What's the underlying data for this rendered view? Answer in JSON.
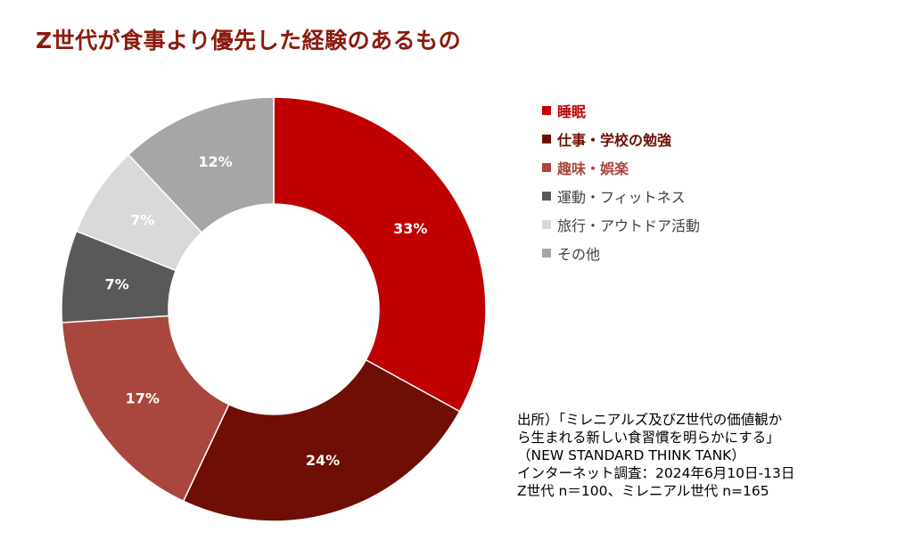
{
  "title": "Z世代が食事より優先した経験のあるもの",
  "colors": {
    "title": "#8b1a0e"
  },
  "chart_data": {
    "type": "pie",
    "donut": true,
    "slices": [
      {
        "label": "睡眠",
        "value": 33,
        "value_label": "33%",
        "color": "#c00000",
        "legend_color": "#c00000",
        "legend_bold": true
      },
      {
        "label": "仕事・学校の勉強",
        "value": 24,
        "value_label": "24%",
        "color": "#6e0e04",
        "legend_color": "#6e0e04",
        "legend_bold": true
      },
      {
        "label": "趣味・娯楽",
        "value": 17,
        "value_label": "17%",
        "color": "#a9473f",
        "legend_color": "#a9473f",
        "legend_bold": true
      },
      {
        "label": "運動・フィットネス",
        "value": 7,
        "value_label": "7%",
        "color": "#595959",
        "legend_color": "#404040",
        "legend_bold": false
      },
      {
        "label": "旅行・アウトドア活動",
        "value": 7,
        "value_label": "7%",
        "color": "#d9d9d9",
        "legend_color": "#404040",
        "legend_bold": false
      },
      {
        "label": "その他",
        "value": 12,
        "value_label": "12%",
        "color": "#a6a6a6",
        "legend_color": "#404040",
        "legend_bold": false
      }
    ],
    "start": "top, clockwise",
    "legend_position": "right"
  },
  "source": {
    "lines": [
      "出所）「ミレニアルズ及びZ世代の価値観か",
      "ら生まれる新しい食習慣を明らかにする」",
      "（NEW STANDARD THINK TANK）",
      "インターネット調査：2024年6月10日-13日",
      "Z世代 n＝100、ミレニアル世代 n=165"
    ]
  }
}
